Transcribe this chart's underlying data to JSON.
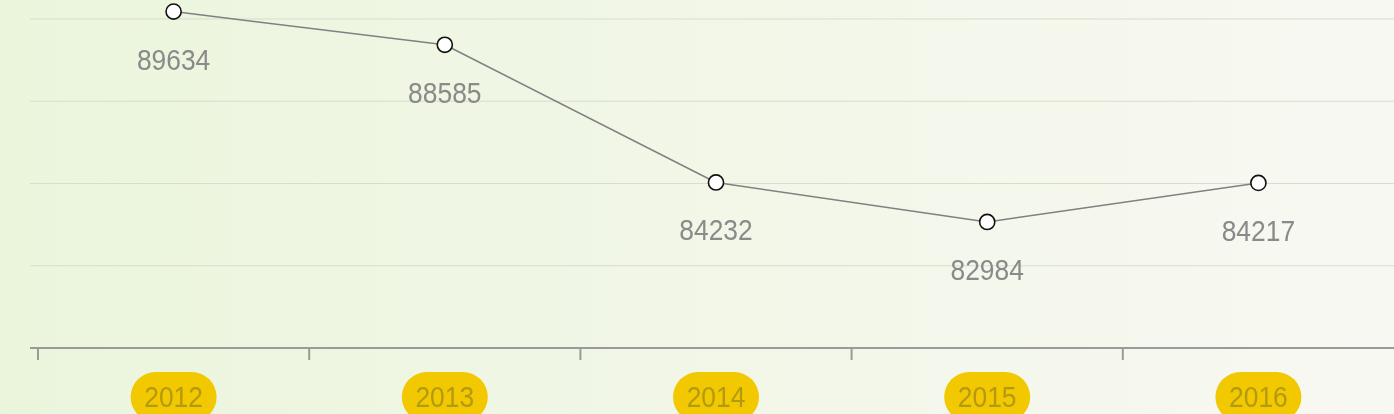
{
  "chart_data": {
    "type": "line",
    "categories": [
      "2012",
      "2013",
      "2014",
      "2015",
      "2016"
    ],
    "series": [
      {
        "color": "#808080",
        "values": [
          89634,
          88585,
          84232,
          82984,
          84217
        ]
      }
    ],
    "ylim": [
      79000,
      90000
    ],
    "yticks": [
      {
        "value": 81600,
        "label": null
      },
      {
        "value": 84200,
        "label": null
      },
      {
        "value": 86800,
        "label": null
      },
      {
        "value": 89400,
        "label": null
      }
    ],
    "grid": "y",
    "tick_labels": "x",
    "marker": "circle",
    "data_labels": true
  }
}
